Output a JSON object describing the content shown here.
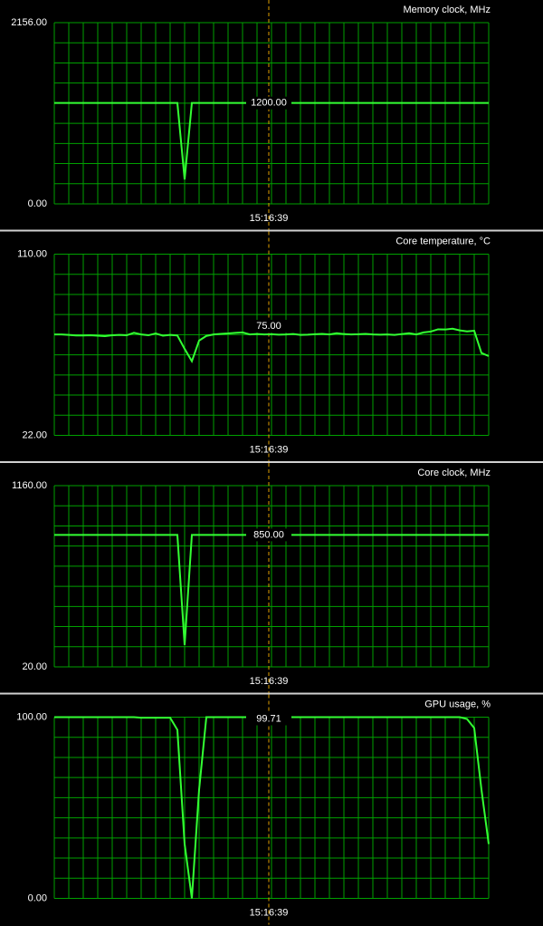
{
  "chart_data": [
    {
      "type": "line",
      "title": "Memory clock, MHz",
      "ylim": [
        0,
        2156
      ],
      "yticks": [
        {
          "value": 0,
          "label": "0.00"
        },
        {
          "value": 2156,
          "label": "2156.00"
        }
      ],
      "grid": true,
      "color": "#33ff33",
      "values": [
        1200,
        1200,
        1200,
        1200,
        1200,
        1200,
        1200,
        1200,
        1200,
        1200,
        1200,
        1200,
        1200,
        1200,
        1200,
        1200,
        1200,
        1200,
        291,
        1200,
        1200,
        1200,
        1200,
        1200,
        1200,
        1200,
        1200,
        1200,
        1200,
        1200,
        1200,
        1200,
        1200,
        1200,
        1200,
        1200,
        1200,
        1200,
        1200,
        1200,
        1200,
        1200,
        1200,
        1200,
        1200,
        1200,
        1200,
        1200,
        1200,
        1200,
        1200,
        1200,
        1200,
        1200,
        1200,
        1200,
        1200,
        1200,
        1200,
        1200,
        1200
      ],
      "cursor": {
        "value": 1200,
        "label": "1200.00",
        "time": "15:16:39"
      }
    },
    {
      "type": "line",
      "title": "Core temperature, °C",
      "ylim": [
        22,
        110
      ],
      "yticks": [
        {
          "value": 22,
          "label": "22.00"
        },
        {
          "value": 110,
          "label": "110.00"
        }
      ],
      "grid": true,
      "color": "#33ff33",
      "values": [
        71,
        71,
        70.8,
        70.5,
        70.5,
        70.6,
        70.4,
        70.2,
        70.6,
        70.8,
        70.6,
        71.8,
        71,
        70.6,
        71.5,
        70.4,
        70.8,
        70.5,
        64,
        58,
        68,
        70.3,
        71,
        71.3,
        71.5,
        71.8,
        72,
        71,
        71.2,
        71,
        71.1,
        70.9,
        71,
        71.2,
        70.8,
        70.9,
        71.1,
        71.3,
        71,
        71.6,
        71.2,
        71,
        71.1,
        71.3,
        71,
        70.9,
        71,
        70.8,
        71.2,
        71.6,
        71,
        72,
        72.4,
        73.5,
        73.4,
        73.8,
        73,
        72.5,
        72.8,
        62,
        60.5
      ],
      "cursor": {
        "value": 75,
        "label": "75.00",
        "time": "15:16:39"
      }
    },
    {
      "type": "line",
      "title": "Core clock, MHz",
      "ylim": [
        20,
        1160
      ],
      "yticks": [
        {
          "value": 20,
          "label": "20.00"
        },
        {
          "value": 1160,
          "label": "1160.00"
        }
      ],
      "grid": true,
      "color": "#33ff33",
      "values": [
        850,
        850,
        850,
        850,
        850,
        850,
        850,
        850,
        850,
        850,
        850,
        850,
        850,
        850,
        850,
        850,
        850,
        850,
        157,
        850,
        850,
        850,
        850,
        850,
        850,
        850,
        850,
        850,
        850,
        850,
        850,
        850,
        850,
        850,
        850,
        850,
        850,
        850,
        850,
        850,
        850,
        850,
        850,
        850,
        850,
        850,
        850,
        850,
        850,
        850,
        850,
        850,
        850,
        850,
        850,
        850,
        850,
        850,
        850,
        850,
        850
      ],
      "cursor": {
        "value": 850,
        "label": "850.00",
        "time": "15:16:39"
      }
    },
    {
      "type": "line",
      "title": "GPU usage, %",
      "ylim": [
        0,
        100
      ],
      "yticks": [
        {
          "value": 0,
          "label": "0.00"
        },
        {
          "value": 100,
          "label": "100.00"
        }
      ],
      "grid": true,
      "color": "#33ff33",
      "values": [
        100,
        100,
        100,
        100,
        100,
        100,
        100,
        100,
        100,
        100,
        100,
        100,
        99.7,
        99.7,
        99.7,
        99.7,
        99.7,
        93,
        30,
        0,
        60,
        100,
        100,
        100,
        100,
        100,
        100,
        100,
        100,
        100,
        100,
        100,
        100,
        100,
        100,
        100,
        100,
        100,
        100,
        100,
        100,
        100,
        100,
        100,
        100,
        100,
        100,
        100,
        100,
        100,
        100,
        100,
        100,
        100,
        100,
        100,
        100,
        99,
        94,
        60,
        30
      ],
      "cursor": {
        "value": 99.71,
        "label": "99.71",
        "time": "15:16:39"
      }
    }
  ]
}
